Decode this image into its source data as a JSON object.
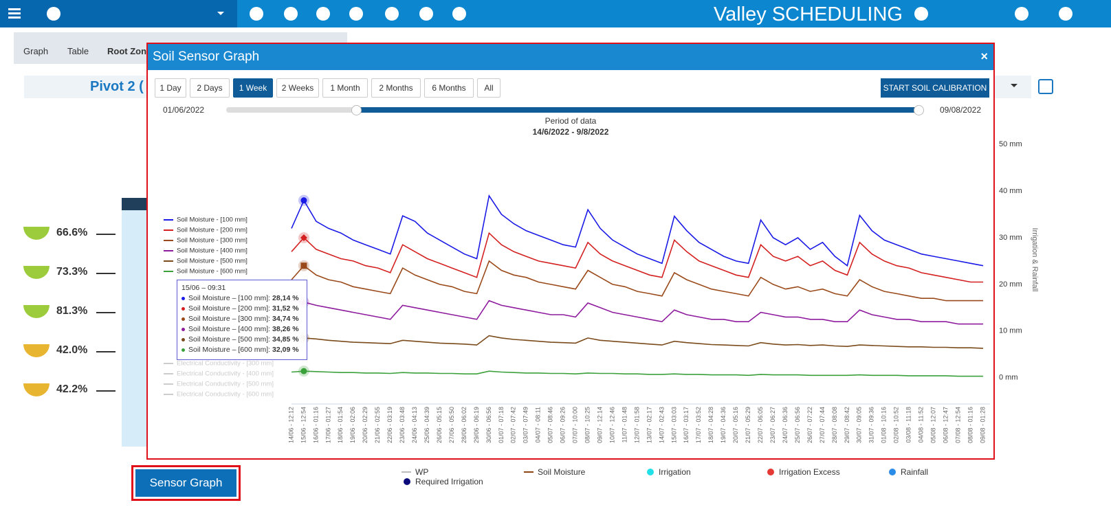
{
  "header": {
    "brand": "Valley SCHEDULING"
  },
  "tabs": [
    "Graph",
    "Table",
    "Root Zone"
  ],
  "pivot_title": "Pivot 2 (",
  "root_zone": {
    "levels": [
      {
        "label": "66.6%",
        "color": "#9ccc3c"
      },
      {
        "label": "73.3%",
        "color": "#9ccc3c"
      },
      {
        "label": "81.3%",
        "color": "#9ccc3c"
      },
      {
        "label": "42.0%",
        "color": "#e8b530"
      },
      {
        "label": "42.2%",
        "color": "#e8b530"
      }
    ]
  },
  "sensor_button": "Sensor Graph",
  "bottom_legend": [
    {
      "name": "WP",
      "color": "#bbbbbb",
      "shape": "line"
    },
    {
      "name": "Soil Moisture",
      "color": "#8b4513",
      "shape": "line"
    },
    {
      "name": "Irrigation",
      "color": "#22e0e8",
      "shape": "dot"
    },
    {
      "name": "Irrigation Excess",
      "color": "#e53935",
      "shape": "dot"
    },
    {
      "name": "Rainfall",
      "color": "#2b8be8",
      "shape": "dot"
    },
    {
      "name": "Required Irrigation",
      "color": "#0a0a7a",
      "shape": "dot"
    }
  ],
  "modal": {
    "title": "Soil Sensor Graph",
    "close": "×",
    "ranges": [
      {
        "label": "1 Day"
      },
      {
        "label": "2 Days"
      },
      {
        "label": "1 Week",
        "active": true
      },
      {
        "label": "2 Weeks"
      },
      {
        "label": "1 Month"
      },
      {
        "label": "2 Months"
      },
      {
        "label": "6 Months"
      },
      {
        "label": "All"
      }
    ],
    "calibration": "START SOIL CALIBRATION",
    "slider_start": "01/06/2022",
    "slider_end": "09/08/2022",
    "period_label": "Period of data",
    "period": "14/6/2022 - 9/8/2022",
    "tooltip": {
      "title": "15/06 – 09:31",
      "rows": [
        {
          "label": "Soil Moisture – [100 mm]:",
          "value": "28,14 %",
          "color": "#1a1ae6"
        },
        {
          "label": "Soil Moisture – [200 mm]:",
          "value": "31,52 %",
          "color": "#d42020"
        },
        {
          "label": "Soil Moisture – [300 mm]:",
          "value": "34,74 %",
          "color": "#9a4a1a"
        },
        {
          "label": "Soil Moisture – [400 mm]:",
          "value": "38,26 %",
          "color": "#8e1a9e"
        },
        {
          "label": "Soil Moisture – [500 mm]:",
          "value": "34,85 %",
          "color": "#7a4a1a"
        },
        {
          "label": "Soil Moisture – [600 mm]:",
          "value": "32,09 %",
          "color": "#3aa03a"
        }
      ]
    }
  },
  "chart_data": {
    "type": "line",
    "y2label": "Irrigation & Rainfall",
    "y2lim": [
      -5.5,
      51.5
    ],
    "y2ticks": [
      {
        "value": 0,
        "label": "0 mm"
      },
      {
        "value": 10,
        "label": "10 mm"
      },
      {
        "value": 20,
        "label": "20 mm"
      },
      {
        "value": 30,
        "label": "30 mm"
      },
      {
        "value": 40,
        "label": "40 mm"
      },
      {
        "value": 50,
        "label": "50 mm"
      }
    ],
    "grid": false,
    "categories": [
      "14/06 - 12:12",
      "15/06 - 12:54",
      "16/06 - 01:16",
      "17/06 - 01:27",
      "18/06 - 01:54",
      "19/06 - 02:06",
      "20/06 - 02:29",
      "21/06 - 02:55",
      "22/06 - 03:19",
      "23/06 - 03:48",
      "24/06 - 04:13",
      "25/06 - 04:39",
      "26/06 - 05:15",
      "27/06 - 05:50",
      "28/06 - 06:02",
      "29/06 - 06:19",
      "30/06 - 06:56",
      "01/07 - 07:18",
      "02/07 - 07:42",
      "03/07 - 07:49",
      "04/07 - 08:11",
      "05/07 - 08:46",
      "06/07 - 09:26",
      "07/07 - 10:00",
      "08/07 - 10:25",
      "09/07 - 12:14",
      "10/07 - 12:46",
      "11/07 - 01:48",
      "12/07 - 01:58",
      "13/07 - 02:17",
      "14/07 - 02:43",
      "15/07 - 03:03",
      "16/07 - 03:17",
      "17/07 - 03:52",
      "18/07 - 04:28",
      "19/07 - 04:36",
      "20/07 - 05:16",
      "21/07 - 05:29",
      "22/07 - 06:05",
      "23/07 - 06:27",
      "24/07 - 06:36",
      "25/07 - 06:56",
      "26/07 - 07:22",
      "27/07 - 07:44",
      "28/07 - 08:08",
      "29/07 - 08:42",
      "30/07 - 09:05",
      "31/07 - 09:36",
      "01/08 - 10:16",
      "02/08 - 10:52",
      "03/08 - 11:18",
      "04/08 - 11:52",
      "05/08 - 12:07",
      "06/08 - 12:47",
      "07/08 - 12:54",
      "08/08 - 01:16",
      "09/08 - 01:28"
    ],
    "series": [
      {
        "name": "Soil Moisture - [100 mm]",
        "color": "#1a1ae6",
        "axis": "y2",
        "marker": "circle",
        "values": [
          32,
          38,
          33.5,
          32,
          31,
          29.5,
          28.5,
          27.5,
          26.5,
          34.7,
          33.5,
          31,
          29.5,
          28,
          26.5,
          25.5,
          39,
          35,
          33,
          31.5,
          30.5,
          29.5,
          28.5,
          28,
          36,
          32,
          29.5,
          28,
          26.5,
          25.5,
          24.5,
          34.6,
          31.5,
          29,
          27.5,
          26,
          25,
          24.5,
          33.8,
          30,
          28.5,
          30,
          27.5,
          29,
          26,
          24,
          34.8,
          31.5,
          29.5,
          28.5,
          27.5,
          26.5,
          26,
          25.5,
          25,
          24.5,
          24
        ]
      },
      {
        "name": "Soil Moisture - [200 mm]",
        "color": "#d42020",
        "axis": "y2",
        "marker": "diamond",
        "values": [
          27,
          30,
          27.5,
          26.5,
          25.5,
          25,
          24,
          23.5,
          22.5,
          28.5,
          27,
          25.5,
          24.5,
          23.5,
          22.5,
          21.5,
          31,
          28.5,
          27,
          26,
          25,
          24.5,
          24,
          23.5,
          29,
          26.5,
          25,
          24,
          23,
          22,
          21.5,
          29.5,
          27,
          25,
          24,
          23,
          22,
          21.5,
          28.5,
          26,
          25,
          26,
          24,
          25,
          23,
          22,
          29,
          26.5,
          25,
          24,
          23.5,
          22.5,
          22,
          21.5,
          21,
          20.5,
          20.5
        ]
      },
      {
        "name": "Soil Moisture - [300 mm]",
        "color": "#9a4a1a",
        "axis": "y2",
        "marker": "square",
        "values": [
          21,
          24,
          22,
          21,
          20.5,
          19.5,
          19,
          18.5,
          18,
          23.5,
          22,
          21,
          20,
          19.5,
          18.5,
          18,
          25,
          23,
          22,
          21.5,
          20.5,
          20,
          19.5,
          19,
          23,
          21.5,
          20,
          19.5,
          18.5,
          18,
          17.5,
          22.5,
          21,
          20,
          19,
          18.5,
          18,
          17.5,
          21.5,
          20,
          19,
          19.5,
          18.5,
          19,
          18,
          17.5,
          21,
          19.5,
          18.5,
          18,
          17.5,
          17,
          17,
          16.5,
          16.5,
          16.5,
          16.5
        ]
      },
      {
        "name": "Soil Moisture - [400 mm]",
        "color": "#8e1a9e",
        "axis": "y2",
        "marker": "triangle",
        "values": [
          16.5,
          16.2,
          15.5,
          15,
          14.5,
          14,
          13.5,
          13,
          12.5,
          15.5,
          15,
          14.5,
          14,
          13.5,
          13,
          12.5,
          16.5,
          15.5,
          15,
          14.5,
          14,
          13.5,
          13.5,
          13,
          16,
          15,
          14,
          13.5,
          13,
          12.5,
          12,
          14.5,
          13.5,
          13,
          12.5,
          12.5,
          12,
          12,
          14,
          13.5,
          13,
          13,
          12.5,
          12.5,
          12,
          12,
          14.5,
          13.5,
          13,
          12.5,
          12.5,
          12,
          12,
          12,
          11.5,
          11.5,
          11.5
        ]
      },
      {
        "name": "Soil Moisture - [500 mm]",
        "color": "#7a4a1a",
        "axis": "y2",
        "marker": "triangle-down",
        "values": [
          8.5,
          8.5,
          8.3,
          8,
          7.8,
          7.6,
          7.5,
          7.4,
          7.3,
          8,
          7.8,
          7.6,
          7.4,
          7.3,
          7.2,
          7,
          9,
          8.5,
          8.2,
          8,
          7.8,
          7.6,
          7.5,
          7.4,
          8.5,
          8,
          7.8,
          7.6,
          7.4,
          7.2,
          7,
          7.8,
          7.5,
          7.3,
          7.1,
          7,
          6.9,
          6.8,
          7.5,
          7.2,
          7,
          7.1,
          6.9,
          7,
          6.8,
          6.7,
          7,
          6.9,
          6.8,
          6.7,
          6.6,
          6.6,
          6.5,
          6.5,
          6.4,
          6.4,
          6.3
        ]
      },
      {
        "name": "Soil Moisture - [600 mm]",
        "color": "#3aa03a",
        "axis": "y2",
        "marker": "circle",
        "values": [
          1.2,
          1.4,
          1.3,
          1.2,
          1.1,
          1.1,
          1,
          1,
          0.9,
          1.1,
          1,
          1,
          0.9,
          0.9,
          0.8,
          0.8,
          1.4,
          1.2,
          1.1,
          1,
          1,
          0.9,
          0.9,
          0.8,
          1,
          0.9,
          0.9,
          0.8,
          0.8,
          0.7,
          0.7,
          0.8,
          0.7,
          0.7,
          0.6,
          0.6,
          0.6,
          0.5,
          0.7,
          0.6,
          0.6,
          0.6,
          0.5,
          0.5,
          0.5,
          0.5,
          0.6,
          0.5,
          0.5,
          0.5,
          0.4,
          0.4,
          0.4,
          0.4,
          0.3,
          0.3,
          0.3
        ]
      }
    ],
    "inactive_legend": [
      "Electrical Conductivity - [300 mm]",
      "Electrical Conductivity - [400 mm]",
      "Electrical Conductivity - [500 mm]",
      "Electrical Conductivity - [600 mm]"
    ]
  }
}
